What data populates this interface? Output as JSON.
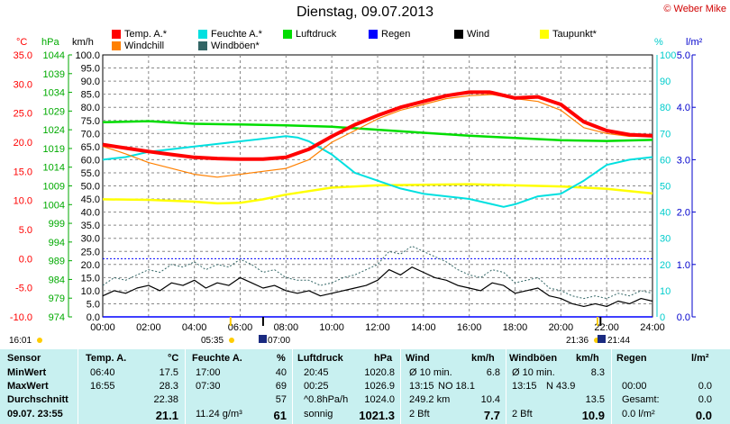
{
  "header": {
    "copyright": "© Weber Mike",
    "title": "Dienstag, 09.07.2013"
  },
  "legend": [
    {
      "label": "Temp. A.*",
      "color": "#ff0000"
    },
    {
      "label": "Feuchte A.*",
      "color": "#00e0e0"
    },
    {
      "label": "Luftdruck",
      "color": "#00dd00"
    },
    {
      "label": "Regen",
      "color": "#0000ff"
    },
    {
      "label": "Wind",
      "color": "#000000"
    },
    {
      "label": "Taupunkt*",
      "color": "#ffff00"
    },
    {
      "label": "Windchill",
      "color": "#ff8000"
    },
    {
      "label": "Windböen*",
      "color": "#336666"
    }
  ],
  "axes": {
    "temp_unit": "°C",
    "press_unit": "hPa",
    "wind_unit": "km/h",
    "hum_unit": "%",
    "rain_unit": "l/m²",
    "temp_ticks": [
      "35.0",
      "30.0",
      "25.0",
      "20.0",
      "15.0",
      "10.0",
      "5.0",
      "0.0",
      "-5.0",
      "-10.0"
    ],
    "press_ticks": [
      "1044",
      "1039",
      "1034",
      "1029",
      "1024",
      "1019",
      "1014",
      "1009",
      "1004",
      "999",
      "994",
      "989",
      "984",
      "979",
      "974"
    ],
    "wind_ticks": [
      "100.0",
      "95.0",
      "90.0",
      "85.0",
      "80.0",
      "75.0",
      "70.0",
      "65.0",
      "60.0",
      "55.0",
      "50.0",
      "45.0",
      "40.0",
      "35.0",
      "30.0",
      "25.0",
      "20.0",
      "15.0",
      "10.0",
      "5.0",
      "0.0"
    ],
    "hum_ticks": [
      "100",
      "90",
      "80",
      "70",
      "60",
      "50",
      "40",
      "30",
      "20",
      "10",
      "0"
    ],
    "rain_ticks": [
      "5.0",
      "4.0",
      "3.0",
      "2.0",
      "1.0",
      "0.0"
    ],
    "time_ticks": [
      "00:00",
      "02:00",
      "04:00",
      "06:00",
      "08:00",
      "10:00",
      "12:00",
      "14:00",
      "16:00",
      "18:00",
      "20:00",
      "22:00",
      "24:00"
    ]
  },
  "sun": {
    "sunrise_left": "16:01",
    "sunrise": "05:35",
    "moonset": "07:00",
    "sunset": "21:36",
    "moonrise": "21:44"
  },
  "chart_data": {
    "type": "line",
    "x_unit": "hours",
    "xlim": [
      0,
      24
    ],
    "series": [
      {
        "name": "Temp. A.*",
        "axis": "temp_c",
        "color": "#ff0000",
        "x": [
          0,
          1,
          2,
          3,
          4,
          5,
          6,
          7,
          8,
          9,
          10,
          11,
          12,
          13,
          14,
          15,
          16,
          16.9,
          17,
          18,
          19,
          20,
          21,
          22,
          23,
          24
        ],
        "y": [
          19.6,
          19.0,
          18.4,
          17.9,
          17.4,
          17.2,
          17.1,
          17.1,
          17.4,
          18.8,
          21.0,
          23.0,
          24.6,
          26.0,
          27.0,
          28.0,
          28.6,
          28.6,
          28.5,
          27.6,
          27.8,
          26.5,
          23.5,
          22.0,
          21.3,
          21.1
        ]
      },
      {
        "name": "Windchill",
        "axis": "temp_c",
        "color": "#ff8000",
        "x": [
          0,
          1,
          2,
          3,
          4,
          5,
          6,
          7,
          8,
          9,
          10,
          11,
          12,
          13,
          14,
          15,
          16,
          17,
          18,
          19,
          20,
          21,
          22,
          23,
          24
        ],
        "y": [
          19.3,
          18.0,
          16.5,
          15.5,
          14.5,
          14.0,
          14.5,
          15.0,
          15.5,
          17.0,
          20.0,
          22.0,
          24.0,
          25.5,
          26.5,
          27.5,
          28.0,
          28.2,
          27.5,
          27.0,
          25.5,
          22.5,
          21.5,
          21.0,
          21.0
        ]
      },
      {
        "name": "Feuchte A.*",
        "axis": "humidity_pct",
        "color": "#00e0e0",
        "x": [
          0,
          1,
          2,
          3,
          4,
          5,
          6,
          7,
          8,
          8.5,
          9,
          10,
          11,
          12,
          13,
          14,
          15,
          16,
          17,
          17.5,
          18,
          19,
          20,
          21,
          22,
          23,
          24
        ],
        "y": [
          60,
          61,
          63,
          64,
          65,
          66,
          67,
          68,
          69,
          68.5,
          67,
          62,
          55,
          52,
          49,
          47,
          46,
          45,
          43,
          42,
          43,
          46,
          47,
          52,
          58,
          60,
          61
        ]
      },
      {
        "name": "Luftdruck",
        "axis": "pressure_hpa",
        "color": "#00dd00",
        "x": [
          0,
          2,
          4,
          6,
          8,
          10,
          12,
          14,
          16,
          18,
          20,
          22,
          24
        ],
        "y": [
          1026.0,
          1026.3,
          1025.6,
          1025.4,
          1025.2,
          1024.8,
          1024.0,
          1023.2,
          1022.4,
          1021.8,
          1021.2,
          1021.0,
          1021.3
        ]
      },
      {
        "name": "Taupunkt*",
        "axis": "temp_c",
        "color": "#ffff00",
        "x": [
          0,
          2,
          4,
          5,
          6,
          7,
          8,
          10,
          12,
          14,
          16,
          18,
          20,
          22,
          24
        ],
        "y": [
          10.2,
          10.1,
          9.8,
          9.5,
          9.6,
          10.2,
          11.0,
          12.2,
          12.6,
          12.7,
          12.8,
          12.6,
          12.4,
          12.0,
          11.2
        ]
      },
      {
        "name": "Wind",
        "axis": "wind_kmh",
        "color": "#000000",
        "x": [
          0,
          0.5,
          1,
          1.5,
          2,
          2.5,
          3,
          3.5,
          4,
          4.5,
          5,
          5.5,
          6,
          6.5,
          7,
          7.5,
          8,
          8.5,
          9,
          9.5,
          10,
          10.5,
          11,
          11.5,
          12,
          12.5,
          13,
          13.5,
          14,
          14.5,
          15,
          15.5,
          16,
          16.5,
          17,
          17.5,
          18,
          18.5,
          19,
          19.5,
          20,
          20.5,
          21,
          21.5,
          22,
          22.5,
          23,
          23.5,
          24
        ],
        "y": [
          8,
          10,
          9,
          11,
          12,
          10,
          13,
          12,
          14,
          11,
          13,
          12,
          15,
          13,
          11,
          12,
          10,
          9,
          10,
          8,
          9,
          10,
          11,
          12,
          14,
          18,
          16,
          19,
          17,
          15,
          14,
          12,
          11,
          10,
          13,
          12,
          9,
          10,
          11,
          8,
          7,
          5,
          4,
          5,
          4,
          6,
          5,
          7,
          6
        ]
      },
      {
        "name": "Windböen*",
        "axis": "wind_kmh",
        "color": "#336666",
        "x": [
          0,
          0.5,
          1,
          1.5,
          2,
          2.5,
          3,
          3.5,
          4,
          4.5,
          5,
          5.5,
          6,
          6.5,
          7,
          7.5,
          8,
          8.5,
          9,
          9.5,
          10,
          10.5,
          11,
          11.5,
          12,
          12.5,
          13,
          13.5,
          14,
          14.5,
          15,
          15.5,
          16,
          16.5,
          17,
          17.5,
          18,
          18.5,
          19,
          19.5,
          20,
          20.5,
          21,
          21.5,
          22,
          22.5,
          23,
          23.5,
          24
        ],
        "y": [
          12,
          15,
          14,
          16,
          18,
          17,
          20,
          19,
          21,
          18,
          20,
          19,
          22,
          20,
          17,
          18,
          15,
          14,
          14,
          12,
          13,
          15,
          16,
          18,
          20,
          25,
          24,
          27,
          25,
          23,
          21,
          18,
          16,
          15,
          18,
          17,
          13,
          14,
          15,
          11,
          10,
          8,
          7,
          8,
          7,
          9,
          8,
          10,
          9
        ]
      },
      {
        "name": "Regen",
        "axis": "rain_lm2",
        "color": "#0000ff",
        "x": [
          0,
          24
        ],
        "y": [
          0,
          0
        ]
      }
    ],
    "axis_ranges": {
      "temp_c": [
        -10,
        35
      ],
      "pressure_hpa": [
        974,
        1044
      ],
      "wind_kmh": [
        0,
        100
      ],
      "humidity_pct": [
        0,
        100
      ],
      "rain_lm2": [
        0,
        5
      ]
    },
    "reference_line_temp_c": 0.0,
    "grid": true
  },
  "table": {
    "headers": {
      "sensor": "Sensor",
      "temp": "Temp. A.",
      "temp_unit": "°C",
      "hum": "Feuchte A.",
      "hum_unit": "%",
      "press": "Luftdruck",
      "press_unit": "hPa",
      "wind": "Wind",
      "wind_unit": "km/h",
      "gust": "Windböen",
      "gust_unit": "km/h",
      "rain": "Regen",
      "rain_unit": "l/m²"
    },
    "rows": [
      {
        "label": "MinWert",
        "temp_time": "06:40",
        "temp": "17.5",
        "hum_time": "17:00",
        "hum": "40",
        "press_time": "20:45",
        "press": "1020.8",
        "wind_time": "Ø 10 min.",
        "wind": "6.8",
        "gust_time": "Ø 10 min.",
        "gust": "8.3",
        "rain_time": "",
        "rain": ""
      },
      {
        "label": "MaxWert",
        "temp_time": "16:55",
        "temp": "28.3",
        "hum_time": "07:30",
        "hum": "69",
        "press_time": "00:25",
        "press": "1026.9",
        "wind_time": "13:15",
        "wind_extra": "NO 18.1",
        "wind": "",
        "gust_time": "13:15",
        "gust_extra": "N 43.9",
        "gust": "",
        "rain_time": "00:00",
        "rain": "0.0"
      },
      {
        "label": "Durchschnitt",
        "temp_time": "",
        "temp": "22.38",
        "hum_time": "",
        "hum": "57",
        "press_time": "^0.8hPa/h",
        "press": "1024.0",
        "wind_time": "249.2 km",
        "wind": "10.4",
        "gust_time": "",
        "gust": "13.5",
        "rain_time": "Gesamt:",
        "rain": "0.0"
      },
      {
        "label": "09.07. 23:55",
        "temp_time": "",
        "temp": "21.1",
        "hum_time": "11.24 g/m³",
        "hum": "61",
        "press_time": "sonnig",
        "press": "1021.3",
        "wind_time": "2 Bft",
        "wind": "7.7",
        "gust_time": "2 Bft",
        "gust": "10.9",
        "rain_time": "0.0 l/m²",
        "rain": "0.0"
      }
    ]
  }
}
